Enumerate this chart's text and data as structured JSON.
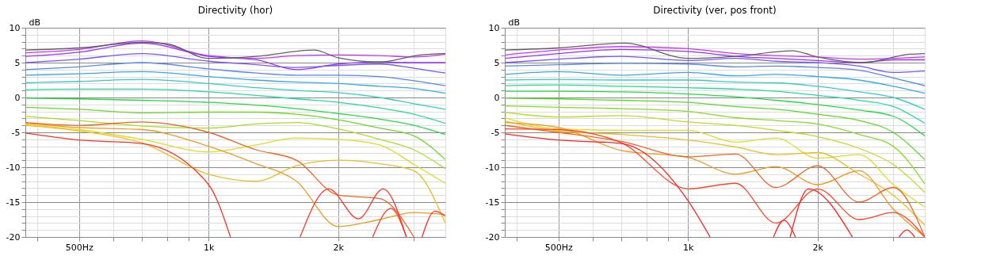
{
  "chart_data": [
    {
      "type": "line",
      "title": "Directivity (hor)",
      "ylabel": "dB",
      "log": "x",
      "grid": true,
      "xlim": [
        375,
        3550
      ],
      "ylim": [
        -20,
        10
      ],
      "xticks": [
        {
          "value": 400,
          "label": null
        },
        {
          "value": 500,
          "label": "500Hz"
        },
        {
          "value": 600,
          "label": null
        },
        {
          "value": 700,
          "label": null
        },
        {
          "value": 800,
          "label": null
        },
        {
          "value": 900,
          "label": null
        },
        {
          "value": 1000,
          "label": "1k"
        },
        {
          "value": 2000,
          "label": "2k"
        },
        {
          "value": 3000,
          "label": null
        }
      ],
      "yticks": [
        -20,
        {
          "value": -19,
          "label": null
        },
        {
          "value": -18,
          "label": null
        },
        {
          "value": -17,
          "label": null
        },
        {
          "value": -16,
          "label": null
        },
        -15,
        {
          "value": -14,
          "label": null
        },
        {
          "value": -13,
          "label": null
        },
        {
          "value": -12,
          "label": null
        },
        {
          "value": -11,
          "label": null
        },
        -10,
        {
          "value": -9,
          "label": null
        },
        {
          "value": -8,
          "label": null
        },
        {
          "value": -7,
          "label": null
        },
        {
          "value": -6,
          "label": null
        },
        -5,
        {
          "value": -4,
          "label": null
        },
        {
          "value": -3,
          "label": null
        },
        {
          "value": -2,
          "label": null
        },
        {
          "value": -1,
          "label": null
        },
        0,
        {
          "value": 1,
          "label": null
        },
        {
          "value": 2,
          "label": null
        },
        {
          "value": 3,
          "label": null
        },
        {
          "value": 4,
          "label": null
        },
        5,
        {
          "value": 6,
          "label": null
        },
        {
          "value": 7,
          "label": null
        },
        {
          "value": 8,
          "label": null
        },
        {
          "value": 9,
          "label": null
        },
        10
      ],
      "x": [
        375,
        500,
        700,
        1000,
        1290,
        1600,
        2000,
        2500,
        3000,
        3550
      ],
      "series": [
        {
          "color": "#cc33ff",
          "values": [
            6.4,
            6.9,
            8.1,
            6.0,
            5.6,
            6.0,
            6.1,
            6.0,
            5.8,
            6.2
          ]
        },
        {
          "color": "#9933ff",
          "values": [
            5.9,
            6.5,
            7.8,
            5.9,
            5.4,
            4.0,
            4.8,
            5.1,
            5.0,
            5.0
          ]
        },
        {
          "color": "#7755ff",
          "values": [
            5.0,
            5.5,
            6.3,
            5.2,
            4.7,
            4.3,
            4.6,
            4.8,
            4.2,
            3.5
          ]
        },
        {
          "color": "#5588ee",
          "values": [
            4.0,
            4.4,
            5.0,
            4.1,
            3.5,
            3.2,
            3.2,
            3.0,
            2.4,
            1.7
          ]
        },
        {
          "color": "#33aaee",
          "values": [
            3.2,
            3.4,
            3.7,
            3.0,
            2.5,
            2.2,
            2.0,
            1.6,
            1.3,
            0.6
          ]
        },
        {
          "color": "#33cccc",
          "values": [
            2.1,
            2.3,
            2.6,
            2.0,
            1.4,
            1.0,
            0.7,
            0.0,
            -0.9,
            -1.7
          ]
        },
        {
          "color": "#22dd99",
          "values": [
            1.1,
            1.2,
            1.2,
            0.8,
            0.3,
            -0.2,
            -0.7,
            -1.5,
            -2.4,
            -3.7
          ]
        },
        {
          "color": "#22dd44",
          "values": [
            -0.1,
            -0.2,
            -0.4,
            -0.7,
            -1.1,
            -1.6,
            -2.3,
            -3.1,
            -4.0,
            -5.3
          ]
        },
        {
          "color": "#66dd22",
          "values": [
            -1.4,
            -1.7,
            -2.2,
            -2.1,
            -2.1,
            -2.4,
            -3.2,
            -4.4,
            -5.5,
            -8.9
          ]
        },
        {
          "color": "#aadd22",
          "values": [
            -2.7,
            -3.3,
            -4.1,
            -4.4,
            -3.8,
            -3.6,
            -4.5,
            -6.0,
            -7.5,
            -10.2
          ]
        },
        {
          "color": "#dddd22",
          "values": [
            -3.9,
            -4.6,
            -6.0,
            -7.8,
            -6.8,
            -5.8,
            -6.0,
            -6.8,
            -9.6,
            -12.3
          ]
        },
        {
          "color": "#eebb22",
          "values": [
            -4.0,
            -4.8,
            -6.5,
            -11.0,
            -12.0,
            -9.8,
            -9.0,
            -9.5,
            -10.5,
            -18.0
          ]
        },
        {
          "color": "#ee9922",
          "values": [
            -3.7,
            -4.3,
            -4.6,
            -7.0,
            -9.5,
            -12.0,
            -18.5,
            -17.5,
            -16.5,
            -16.8
          ]
        },
        {
          "color": "#ee6622",
          "x": [
            375,
            500,
            700,
            1000,
            1290,
            1600,
            2000,
            2500,
            3000
          ],
          "values": [
            -3.6,
            -4.0,
            -3.5,
            -5.0,
            -7.5,
            -9.0,
            -14.0,
            -14.5,
            -20
          ]
        },
        {
          "color": "#ff3322",
          "x": [
            375,
            500,
            700,
            1000,
            1124
          ],
          "values": [
            -5.1,
            -6.1,
            -6.6,
            -12.5,
            -20
          ]
        },
        {
          "color": "#ff3322",
          "x": [
            1632,
            1901,
            2230,
            2544,
            2882
          ],
          "values": [
            -20,
            -13.1,
            -17.4,
            -13.1,
            -20
          ]
        },
        {
          "color": "#ff3322",
          "x": [
            2407,
            2652,
            2882
          ],
          "values": [
            -20,
            -15.9,
            -20
          ]
        },
        {
          "color": "#ff3322",
          "x": [
            3134,
            3358,
            3545
          ],
          "values": [
            -20,
            -16.3,
            -17.0
          ]
        },
        {
          "color": "#606060",
          "x": [
            375,
            500,
            700,
            800,
            1000,
            1290,
            1760,
            2000,
            2500,
            3100,
            3550
          ],
          "values": [
            6.8,
            7.1,
            7.9,
            7.7,
            5.6,
            5.9,
            6.8,
            5.7,
            5.1,
            6.1,
            6.3
          ]
        }
      ]
    },
    {
      "type": "line",
      "title": "Directivity (ver, pos front)",
      "ylabel": "dB",
      "log": "x",
      "grid": true,
      "xlim": [
        375,
        3550
      ],
      "ylim": [
        -20,
        10
      ],
      "xticks": [
        {
          "value": 400,
          "label": null
        },
        {
          "value": 500,
          "label": "500Hz"
        },
        {
          "value": 600,
          "label": null
        },
        {
          "value": 700,
          "label": null
        },
        {
          "value": 800,
          "label": null
        },
        {
          "value": 900,
          "label": null
        },
        {
          "value": 1000,
          "label": "1k"
        },
        {
          "value": 2000,
          "label": "2k"
        },
        {
          "value": 3000,
          "label": null
        }
      ],
      "yticks": [
        -20,
        {
          "value": -19,
          "label": null
        },
        {
          "value": -18,
          "label": null
        },
        {
          "value": -17,
          "label": null
        },
        {
          "value": -16,
          "label": null
        },
        -15,
        {
          "value": -14,
          "label": null
        },
        {
          "value": -13,
          "label": null
        },
        {
          "value": -12,
          "label": null
        },
        {
          "value": -11,
          "label": null
        },
        -10,
        {
          "value": -9,
          "label": null
        },
        {
          "value": -8,
          "label": null
        },
        {
          "value": -7,
          "label": null
        },
        {
          "value": -6,
          "label": null
        },
        -5,
        {
          "value": -4,
          "label": null
        },
        {
          "value": -3,
          "label": null
        },
        {
          "value": -2,
          "label": null
        },
        {
          "value": -1,
          "label": null
        },
        0,
        {
          "value": 1,
          "label": null
        },
        {
          "value": 2,
          "label": null
        },
        {
          "value": 3,
          "label": null
        },
        {
          "value": 4,
          "label": null
        },
        5,
        {
          "value": 6,
          "label": null
        },
        {
          "value": 7,
          "label": null
        },
        {
          "value": 8,
          "label": null
        },
        {
          "value": 9,
          "label": null
        },
        10
      ],
      "x": [
        375,
        500,
        700,
        1000,
        1290,
        1600,
        2000,
        2500,
        3000,
        3550
      ],
      "series": [
        {
          "color": "#cc33ff",
          "values": [
            6.1,
            6.8,
            7.3,
            7.0,
            6.3,
            6.0,
            5.8,
            5.5,
            5.6,
            5.8
          ]
        },
        {
          "color": "#9933ff",
          "values": [
            5.6,
            6.3,
            6.9,
            6.6,
            5.9,
            5.6,
            5.3,
            5.0,
            5.4,
            5.4
          ]
        },
        {
          "color": "#7755ff",
          "values": [
            5.0,
            5.5,
            5.9,
            5.3,
            5.6,
            5.2,
            5.0,
            4.5,
            3.6,
            3.8
          ]
        },
        {
          "color": "#5588ee",
          "values": [
            4.5,
            4.7,
            4.9,
            4.8,
            4.4,
            4.5,
            4.3,
            3.9,
            2.8,
            1.7
          ]
        },
        {
          "color": "#33aaee",
          "values": [
            3.3,
            3.7,
            3.2,
            3.6,
            3.1,
            3.3,
            3.0,
            2.5,
            1.6,
            0.6
          ]
        },
        {
          "color": "#33cccc",
          "values": [
            2.5,
            2.6,
            2.5,
            2.5,
            2.2,
            2.1,
            1.6,
            0.8,
            0.0,
            -1.7
          ]
        },
        {
          "color": "#22dd99",
          "values": [
            1.7,
            1.8,
            1.6,
            1.4,
            1.2,
            0.9,
            0.3,
            -0.4,
            -1.3,
            -3.7
          ]
        },
        {
          "color": "#22dd44",
          "values": [
            0.9,
            0.9,
            0.8,
            0.5,
            0.1,
            -0.4,
            -1.0,
            -1.8,
            -2.7,
            -5.5
          ]
        },
        {
          "color": "#55dd22",
          "values": [
            -0.1,
            -0.2,
            -0.4,
            -0.7,
            -1.3,
            -1.7,
            -2.4,
            -3.3,
            -5.0,
            -8.9
          ]
        },
        {
          "color": "#88dd22",
          "values": [
            -1.2,
            -1.4,
            -1.6,
            -2.0,
            -2.9,
            -3.3,
            -3.8,
            -5.3,
            -7.0,
            -12.4
          ]
        },
        {
          "color": "#bbdd22",
          "values": [
            -2.1,
            -2.8,
            -2.6,
            -3.5,
            -4.0,
            -4.7,
            -5.6,
            -7.3,
            -9.6,
            -13.6
          ]
        },
        {
          "color": "#dddd22",
          "values": [
            -2.9,
            -4.5,
            -4.7,
            -4.7,
            -6.4,
            -5.8,
            -8.7,
            -8.2,
            -12.5,
            -15.7
          ]
        },
        {
          "color": "#eebb22",
          "values": [
            -3.4,
            -4.8,
            -5.3,
            -6.1,
            -7.1,
            -8.2,
            -7.9,
            -11.0,
            -14.0,
            -18.3
          ]
        },
        {
          "color": "#ee9922",
          "values": [
            -3.6,
            -4.3,
            -7.6,
            -8.6,
            -11.0,
            -9.9,
            -12.5,
            -10.5,
            -16.0,
            -20
          ]
        },
        {
          "color": "#ee6622",
          "values": [
            -4.0,
            -5.0,
            -6.3,
            -8.5,
            -8.1,
            -12.9,
            -9.8,
            -15.0,
            -12.9,
            -20
          ]
        },
        {
          "color": "#ff4422",
          "values": [
            -4.5,
            -4.6,
            -6.5,
            -13.1,
            -12.3,
            -18.0,
            -13.1,
            -17.5,
            -16.5,
            -20
          ]
        },
        {
          "color": "#ff2222",
          "x": [
            375,
            500,
            700,
            1000,
            1125
          ],
          "values": [
            -5.2,
            -6.1,
            -6.6,
            -14.8,
            -20
          ]
        },
        {
          "color": "#ff2222",
          "x": [
            1580,
            1670,
            1777
          ],
          "values": [
            -20,
            -17.6,
            -20
          ]
        },
        {
          "color": "#ff2222",
          "x": [
            1728,
            1905,
            2410
          ],
          "values": [
            -20,
            -13.1,
            -20
          ]
        },
        {
          "color": "#ff2222",
          "x": [
            3094,
            3226,
            3364
          ],
          "values": [
            -20,
            -19.0,
            -20
          ]
        },
        {
          "color": "#606060",
          "x": [
            375,
            500,
            712,
            1000,
            1290,
            1750,
            2000,
            2550,
            3270,
            3550
          ],
          "values": [
            6.8,
            7.1,
            7.8,
            5.6,
            5.9,
            6.7,
            5.8,
            5.0,
            6.2,
            6.3
          ]
        }
      ]
    }
  ]
}
